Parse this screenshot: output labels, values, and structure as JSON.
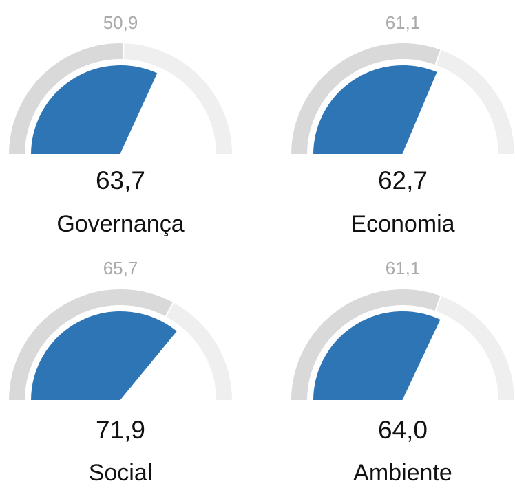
{
  "chart_data": [
    {
      "type": "gauge",
      "title": "Governança",
      "values": [
        63.7
      ],
      "value_labels": [
        "63,7"
      ],
      "reference": {
        "value": 50.9,
        "label": "50,9"
      },
      "ylim": [
        0,
        100
      ],
      "color": "#2e75b6"
    },
    {
      "type": "gauge",
      "title": "Economia",
      "values": [
        62.7
      ],
      "value_labels": [
        "62,7"
      ],
      "reference": {
        "value": 61.1,
        "label": "61,1"
      },
      "ylim": [
        0,
        100
      ],
      "color": "#2e75b6"
    },
    {
      "type": "gauge",
      "title": "Social",
      "values": [
        71.9
      ],
      "value_labels": [
        "71,9"
      ],
      "reference": {
        "value": 65.7,
        "label": "65,7"
      },
      "ylim": [
        0,
        100
      ],
      "color": "#2e75b6"
    },
    {
      "type": "gauge",
      "title": "Ambiente",
      "values": [
        64.0
      ],
      "value_labels": [
        "64,0"
      ],
      "reference": {
        "value": 61.1,
        "label": "61,1"
      },
      "ylim": [
        0,
        100
      ],
      "color": "#2e75b6"
    }
  ]
}
